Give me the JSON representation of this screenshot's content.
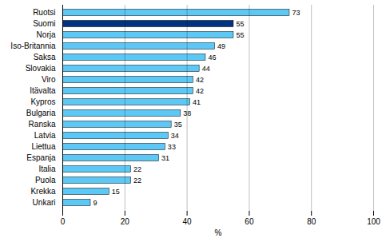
{
  "chart_data": {
    "type": "bar",
    "orientation": "horizontal",
    "categories": [
      "Ruotsi",
      "Suomi",
      "Norja",
      "Iso-Britannia",
      "Saksa",
      "Slovakia",
      "Viro",
      "Itävalta",
      "Kypros",
      "Bulgaria",
      "Ranska",
      "Latvia",
      "Liettua",
      "Espanja",
      "Italia",
      "Puola",
      "Krekka",
      "Unkari"
    ],
    "values": [
      73,
      55,
      55,
      49,
      46,
      44,
      42,
      42,
      41,
      38,
      35,
      34,
      33,
      31,
      22,
      22,
      15,
      9
    ],
    "colors": [
      "#5BC8F5",
      "#003380",
      "#5BC8F5",
      "#5BC8F5",
      "#5BC8F5",
      "#5BC8F5",
      "#5BC8F5",
      "#5BC8F5",
      "#5BC8F5",
      "#5BC8F5",
      "#5BC8F5",
      "#5BC8F5",
      "#5BC8F5",
      "#5BC8F5",
      "#5BC8F5",
      "#5BC8F5",
      "#5BC8F5",
      "#5BC8F5"
    ],
    "xlabel": "%",
    "xlim": [
      0,
      100
    ],
    "xticks": [
      0,
      20,
      40,
      60,
      80,
      100
    ],
    "grid": true,
    "data_labels": true
  }
}
